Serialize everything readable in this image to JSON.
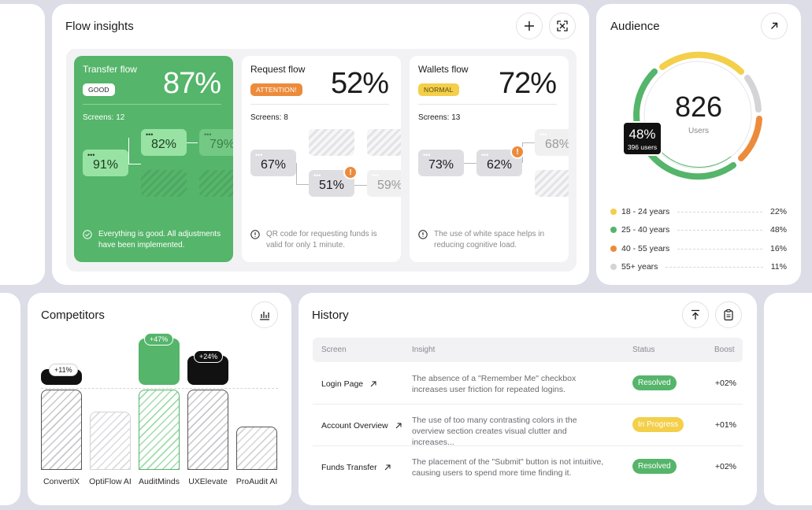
{
  "flow_insights": {
    "title": "Flow insights",
    "add_icon": "plus-icon",
    "expand_icon": "expand-icon",
    "flows": [
      {
        "name": "Transfer flow",
        "percent": "87%",
        "badge": "GOOD",
        "screens": "Screens: 12",
        "nodes": [
          "91%",
          "82%",
          "79%"
        ],
        "footer": "Everything is good. All adjustments have been implemented."
      },
      {
        "name": "Request flow",
        "percent": "52%",
        "badge": "ATTENTION!",
        "screens": "Screens: 8",
        "nodes": [
          "67%",
          "51%",
          "59%"
        ],
        "footer": "QR code for requesting funds is valid for only 1 minute."
      },
      {
        "name": "Wallets flow",
        "percent": "72%",
        "badge": "NORMAL",
        "screens": "Screens: 13",
        "nodes": [
          "73%",
          "62%",
          "68%"
        ],
        "footer": "The use of white space helps in reducing cognitive load."
      }
    ]
  },
  "audience": {
    "title": "Audience",
    "total": "826",
    "total_label": "Users",
    "highlight_percent": "48%",
    "highlight_users": "396 users",
    "segments": [
      {
        "label": "18 - 24 years",
        "value": "22%",
        "color": "#f3cf4a"
      },
      {
        "label": "25 - 40 years",
        "value": "48%",
        "color": "#55b56a"
      },
      {
        "label": "40 - 55 years",
        "value": "16%",
        "color": "#ec8b3c"
      },
      {
        "label": "55+ years",
        "value": "11%",
        "color": "#d4d4d8"
      }
    ]
  },
  "competitors": {
    "title": "Competitors",
    "chart_icon": "bar-chart-icon",
    "items": [
      {
        "name": "ConvertiX",
        "badge": "+11%"
      },
      {
        "name": "OptiFlow AI",
        "badge": ""
      },
      {
        "name": "AuditMinds",
        "badge": "+47%"
      },
      {
        "name": "UXElevate",
        "badge": "+24%"
      },
      {
        "name": "ProAudit AI",
        "badge": ""
      }
    ]
  },
  "history": {
    "title": "History",
    "headers": {
      "screen": "Screen",
      "insight": "Insight",
      "status": "Status",
      "boost": "Boost"
    },
    "rows": [
      {
        "screen": "Login Page",
        "insight": "The absence of a \"Remember Me\" checkbox increases user friction for repeated logins.",
        "status": "Resolved",
        "boost": "+02%"
      },
      {
        "screen": "Account Overview",
        "insight": "The use of too many contrasting colors in the overview section creates visual clutter and increases...",
        "status": "In Progress",
        "boost": "+01%"
      },
      {
        "screen": "Funds Transfer",
        "insight": "The placement of the \"Submit\" button is not intuitive, causing users to spend more time finding it.",
        "status": "Resolved",
        "boost": "+02%"
      }
    ]
  },
  "colors": {
    "green": "#55b56a",
    "light_green": "#98e3a3",
    "orange": "#ec8b3c",
    "yellow": "#f3cf4a",
    "black": "#111111"
  }
}
